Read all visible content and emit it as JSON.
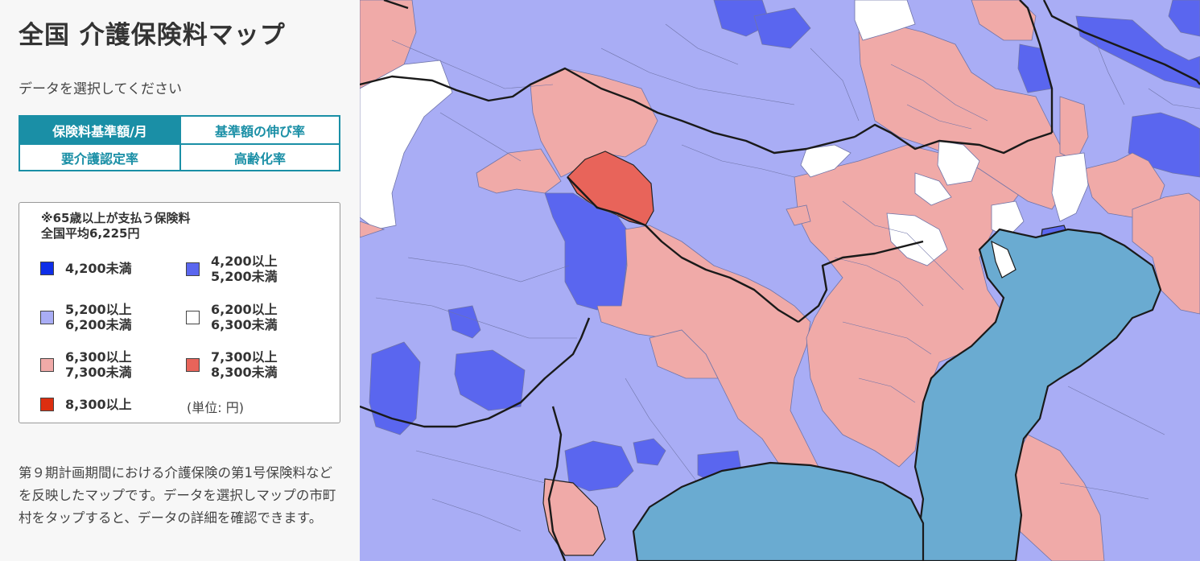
{
  "sidebar": {
    "title": "全国 介護保険料マップ",
    "prompt": "データを選択してください",
    "tabs": [
      {
        "label": "保険料基準額/月",
        "active": true
      },
      {
        "label": "基準額の伸び率",
        "active": false
      },
      {
        "label": "要介護認定率",
        "active": false
      },
      {
        "label": "高齢化率",
        "active": false
      }
    ],
    "legend": {
      "note_line1": "※65歳以上が支払う保険料",
      "note_line2": "全国平均6,225円",
      "items": [
        {
          "label": "4,200未満",
          "color": "#0e2ee8"
        },
        {
          "label": "4,200以上\n5,200未満",
          "color": "#5a66ef"
        },
        {
          "label": "5,200以上\n6,200未満",
          "color": "#a9adf5"
        },
        {
          "label": "6,200以上\n6,300未満",
          "color": "#ffffff"
        },
        {
          "label": "6,300以上\n7,300未満",
          "color": "#f0aaa8"
        },
        {
          "label": "7,300以上\n8,300未満",
          "color": "#e8645a"
        },
        {
          "label": "8,300以上",
          "color": "#dc2e10"
        }
      ],
      "unit": "(単位: 円)"
    },
    "description": "第９期計画期間における介護保険の第1号保険料などを反映したマップです。データを選択しマップの市町村をタップすると、データの詳細を確認できます。"
  },
  "map": {
    "sea_color": "#6aabd1",
    "border_color": "#1a1a1a"
  }
}
